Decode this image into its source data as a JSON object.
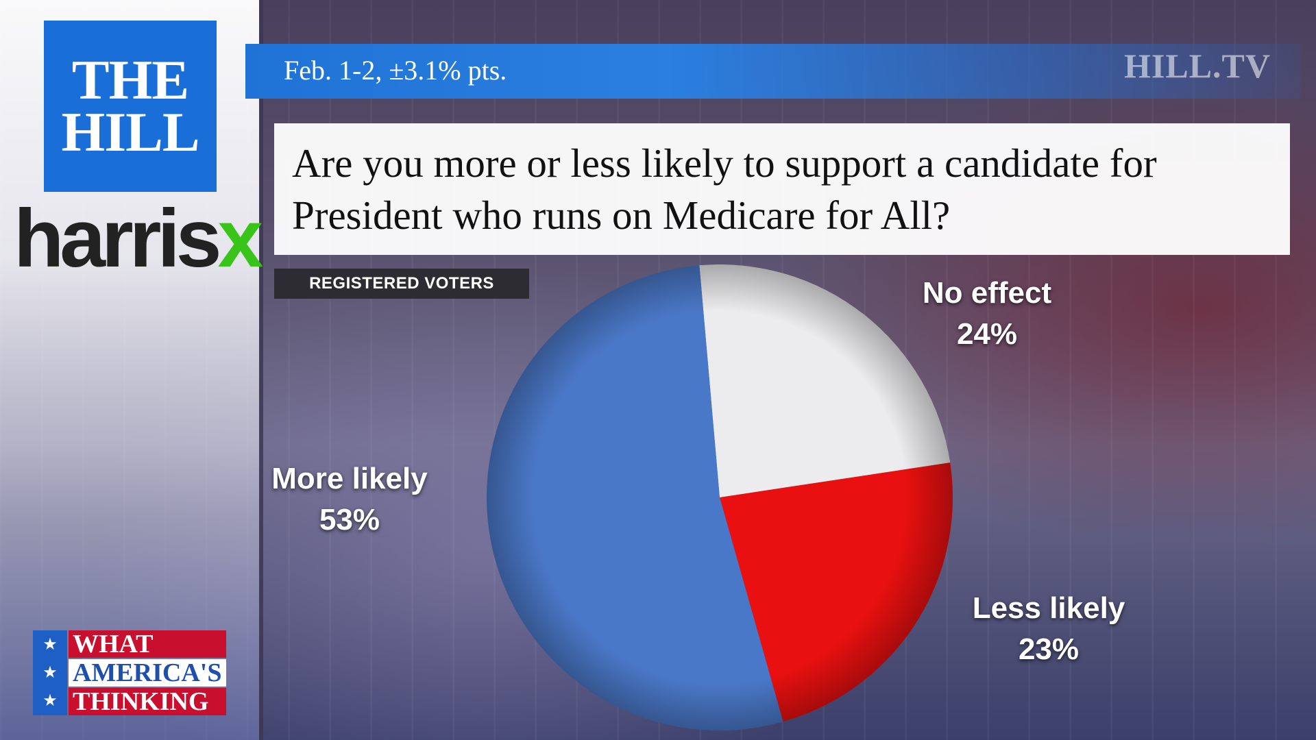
{
  "header": {
    "date_note": "Feb. 1-2,  ±3.1% pts.",
    "brand": "HILL.TV"
  },
  "logos": {
    "thehill_line1": "THE",
    "thehill_line2": "HILL",
    "harrisx_part1": "harris",
    "harrisx_part2": "x",
    "wat_line1": "WHAT",
    "wat_line2": "AMERICA'S",
    "wat_line3": "THINKING",
    "star": "★"
  },
  "chart_data": {
    "type": "pie",
    "title": "Are you more or less likely to support a candidate for President who runs on Medicare for All?",
    "subtitle": "REGISTERED VOTERS",
    "slices": [
      {
        "label": "No effect",
        "value": 24,
        "display": "24%",
        "color": "#ececee"
      },
      {
        "label": "Less likely",
        "value": 23,
        "display": "23%",
        "color": "#e81010"
      },
      {
        "label": "More likely",
        "value": 53,
        "display": "53%",
        "color": "#4a78c8"
      }
    ]
  }
}
